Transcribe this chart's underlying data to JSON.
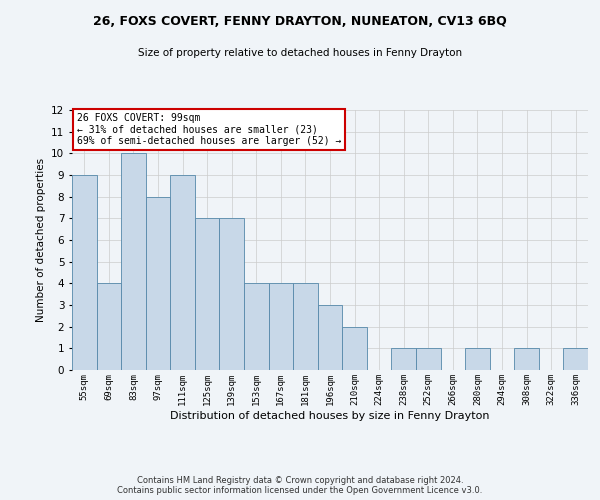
{
  "title": "26, FOXS COVERT, FENNY DRAYTON, NUNEATON, CV13 6BQ",
  "subtitle": "Size of property relative to detached houses in Fenny Drayton",
  "xlabel": "Distribution of detached houses by size in Fenny Drayton",
  "ylabel": "Number of detached properties",
  "categories": [
    "55sqm",
    "69sqm",
    "83sqm",
    "97sqm",
    "111sqm",
    "125sqm",
    "139sqm",
    "153sqm",
    "167sqm",
    "181sqm",
    "196sqm",
    "210sqm",
    "224sqm",
    "238sqm",
    "252sqm",
    "266sqm",
    "280sqm",
    "294sqm",
    "308sqm",
    "322sqm",
    "336sqm"
  ],
  "values": [
    9,
    4,
    10,
    8,
    9,
    7,
    7,
    4,
    4,
    4,
    3,
    2,
    0,
    1,
    1,
    0,
    1,
    0,
    1,
    0,
    1
  ],
  "bar_color": "#c8d8e8",
  "bar_edge_color": "#5588aa",
  "ylim": [
    0,
    12
  ],
  "yticks": [
    0,
    1,
    2,
    3,
    4,
    5,
    6,
    7,
    8,
    9,
    10,
    11,
    12
  ],
  "annotation_text": "26 FOXS COVERT: 99sqm\n← 31% of detached houses are smaller (23)\n69% of semi-detached houses are larger (52) →",
  "annotation_box_color": "#ffffff",
  "annotation_edge_color": "#cc0000",
  "footnote": "Contains HM Land Registry data © Crown copyright and database right 2024.\nContains public sector information licensed under the Open Government Licence v3.0.",
  "background_color": "#f0f4f8",
  "grid_color": "#cccccc"
}
